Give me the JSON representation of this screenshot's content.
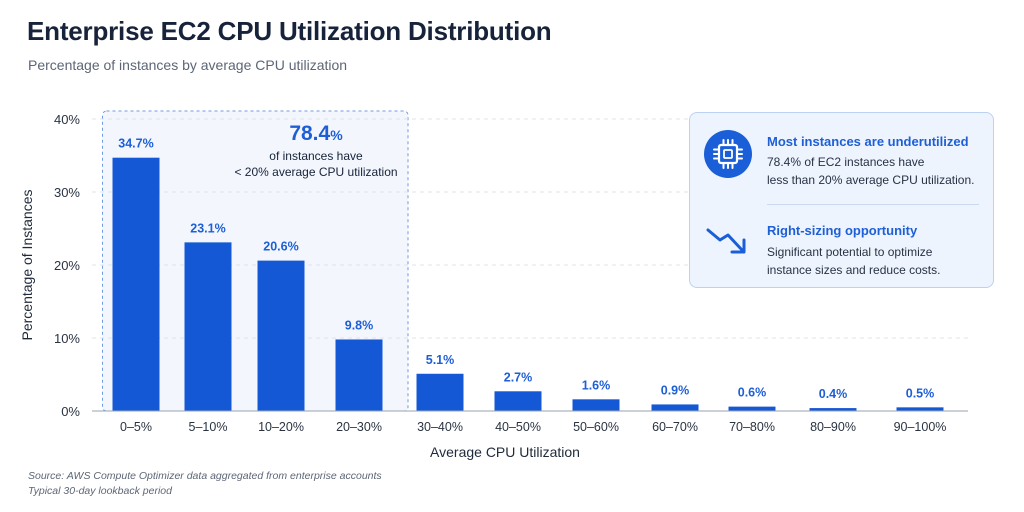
{
  "title": "Enterprise EC2 CPU Utilization Distribution",
  "subtitle": "Percentage of instances by average CPU utilization",
  "colors": {
    "bar": "#1558d6",
    "accent": "#1e5fd6",
    "highlight_border": "#6b9be3",
    "highlight_fill": "#f3f7fd",
    "panel_fill": "#eef4fd"
  },
  "callout": {
    "value": "78.4",
    "unit": "%",
    "line1": "of instances have",
    "line2": "< 20% average CPU utilization"
  },
  "insights": {
    "underutilized": {
      "icon": "cpu-chip-icon",
      "heading": "Most instances are underutilized",
      "line1": "78.4% of EC2 instances have",
      "line2": "less than 20% average CPU utilization."
    },
    "rightsizing": {
      "icon": "trending-down-icon",
      "heading": "Right-sizing opportunity",
      "line1": "Significant potential to optimize",
      "line2": "instance sizes and reduce costs."
    }
  },
  "source": {
    "line1": "Source: AWS Compute Optimizer data aggregated from enterprise accounts",
    "line2": "Typical 30-day lookback period"
  },
  "chart_data": {
    "type": "bar",
    "categories": [
      "0–5%",
      "5–10%",
      "10–20%",
      "20–30%",
      "30–40%",
      "40–50%",
      "50–60%",
      "60–70%",
      "70–80%",
      "80–90%",
      "90–100%"
    ],
    "values": [
      34.7,
      23.1,
      20.6,
      9.8,
      5.1,
      2.7,
      1.6,
      0.9,
      0.6,
      0.4,
      0.5
    ],
    "value_labels": [
      "34.7%",
      "23.1%",
      "20.6%",
      "9.8%",
      "5.1%",
      "2.7%",
      "1.6%",
      "0.9%",
      "0.6%",
      "0.4%",
      "0.5%"
    ],
    "xlabel": "Average CPU Utilization",
    "ylabel": "Percentage of Instances",
    "ylim": [
      0,
      40
    ],
    "yticks": [
      0,
      10,
      20,
      30,
      40
    ],
    "ytick_labels": [
      "0%",
      "10%",
      "20%",
      "30%",
      "40%"
    ],
    "grid": "horizontal dashed",
    "highlight_categories": [
      "0–5%",
      "5–10%",
      "10–20%",
      "20–30%"
    ]
  }
}
